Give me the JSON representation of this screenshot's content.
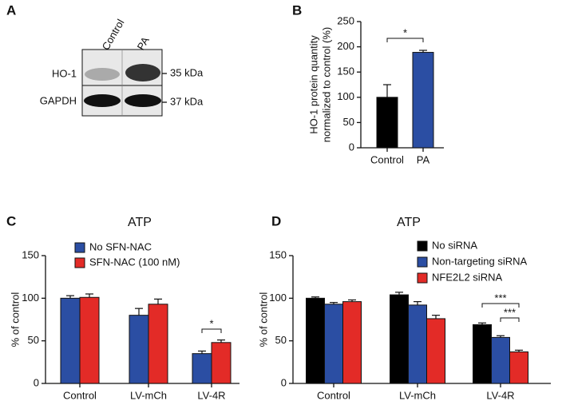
{
  "panel_labels": [
    "A",
    "B",
    "C",
    "D"
  ],
  "blot": {
    "lanes": [
      "Control",
      "PA"
    ],
    "rows": [
      "HO-1",
      "GAPDH"
    ],
    "sizes": [
      "35 kDa",
      "37 kDa"
    ]
  },
  "chart_data": [
    {
      "type": "bar",
      "ylabel": [
        "HO-1 protein quantity",
        "normalized to control (%)"
      ],
      "categories": [
        "Control",
        "PA"
      ],
      "values": [
        100,
        189
      ],
      "errors": [
        25,
        4
      ],
      "colors": [
        "#000000",
        "#2b4ea3"
      ],
      "ylim": [
        0,
        250
      ],
      "yticks": [
        0,
        50,
        100,
        150,
        200,
        250
      ],
      "annotations": [
        "*"
      ]
    },
    {
      "type": "grouped-bar",
      "title": "ATP",
      "ylabel": "% of control",
      "categories": [
        "Control",
        "LV-mCh",
        "LV-4R"
      ],
      "series": [
        {
          "name": "No SFN-NAC",
          "color": "#2b4ea3",
          "values": [
            100,
            80,
            35
          ],
          "errors": [
            3,
            8,
            3
          ]
        },
        {
          "name": "SFN-NAC (100 nM)",
          "color": "#e32b27",
          "values": [
            101,
            93,
            48
          ],
          "errors": [
            4,
            6,
            3
          ]
        }
      ],
      "ylim": [
        0,
        150
      ],
      "yticks": [
        0,
        50,
        100,
        150
      ],
      "annotations": [
        "*"
      ]
    },
    {
      "type": "grouped-bar",
      "title": "ATP",
      "ylabel": "% of control",
      "categories": [
        "Control",
        "LV-mCh",
        "LV-4R"
      ],
      "series": [
        {
          "name": "No siRNA",
          "color": "#000000",
          "values": [
            100,
            104,
            69
          ],
          "errors": [
            1.5,
            3,
            2
          ]
        },
        {
          "name": "Non-targeting siRNA",
          "color": "#2b4ea3",
          "values": [
            93,
            92,
            54
          ],
          "errors": [
            2,
            4,
            2
          ]
        },
        {
          "name": "NFE2L2 siRNA",
          "color": "#e32b27",
          "values": [
            96,
            76,
            37
          ],
          "errors": [
            2,
            4,
            2
          ]
        }
      ],
      "ylim": [
        0,
        150
      ],
      "yticks": [
        0,
        50,
        100,
        150
      ],
      "annotations": [
        "***",
        "***"
      ]
    }
  ]
}
